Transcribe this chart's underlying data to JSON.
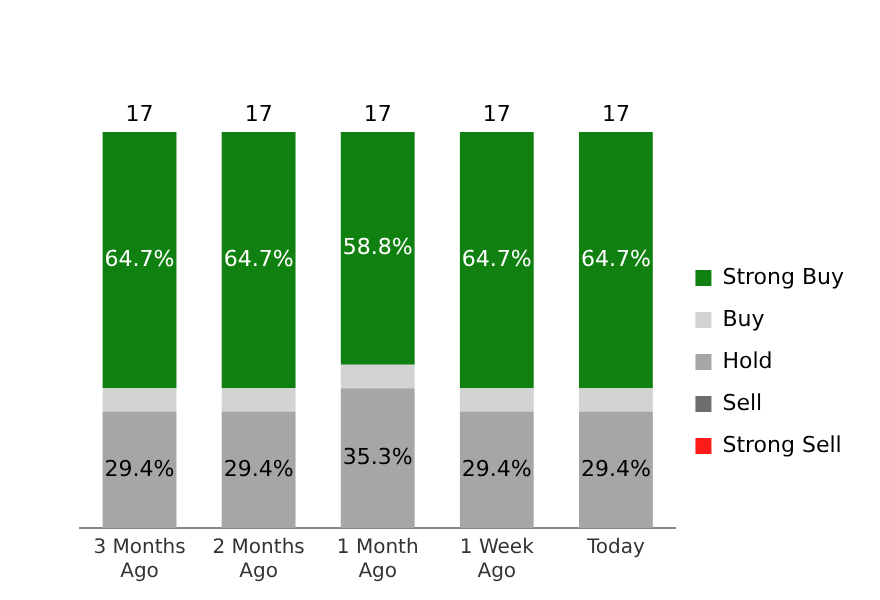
{
  "chart_data": {
    "type": "bar",
    "stacked": true,
    "categories": [
      "3 Months Ago",
      "2 Months Ago",
      "1 Month Ago",
      "1 Week Ago",
      "Today"
    ],
    "legend": "right",
    "grid": false,
    "tick_labels": "x",
    "series": [
      {
        "name": "Hold",
        "color": "#a6a6a6",
        "values": [
          29.4,
          29.4,
          35.3,
          29.4,
          29.4
        ],
        "value_labels": [
          "29.4%",
          "29.4%",
          "35.3%",
          "29.4%",
          "29.4%"
        ]
      },
      {
        "name": "Buy",
        "color": "#d3d3d3",
        "values": [
          5.9,
          5.9,
          5.9,
          5.9,
          5.9
        ],
        "value_labels": [
          null,
          null,
          null,
          null,
          null
        ]
      },
      {
        "name": "Strong Buy",
        "color": "#108010",
        "values": [
          64.7,
          64.7,
          58.8,
          64.7,
          64.7
        ],
        "value_labels": [
          "64.7%",
          "64.7%",
          "58.8%",
          "64.7%",
          "64.7%"
        ]
      },
      {
        "name": "Sell",
        "color": "#6e6e6e",
        "values": [
          0,
          0,
          0,
          0,
          0
        ],
        "value_labels": [
          null,
          null,
          null,
          null,
          null
        ]
      },
      {
        "name": "Strong Sell",
        "color": "#ff1a1a",
        "values": [
          0,
          0,
          0,
          0,
          0
        ],
        "value_labels": [
          null,
          null,
          null,
          null,
          null
        ]
      }
    ],
    "annotations": [
      {
        "text": "17",
        "x": "3 Months Ago",
        "y": 100
      },
      {
        "text": "17",
        "x": "2 Months Ago",
        "y": 100
      },
      {
        "text": "17",
        "x": "1 Month Ago",
        "y": 100
      },
      {
        "text": "17",
        "x": "1 Week Ago",
        "y": 100
      },
      {
        "text": "17",
        "x": "Today",
        "y": 100
      }
    ]
  }
}
